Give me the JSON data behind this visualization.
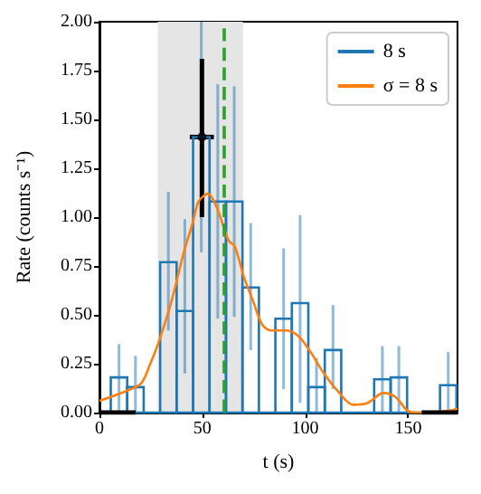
{
  "chart_data": {
    "type": "histogram",
    "xlabel": "t (s)",
    "ylabel": "Rate (counts s⁻¹)",
    "xlim": [
      0,
      174
    ],
    "xticks": [
      0,
      50,
      100,
      150
    ],
    "ylim": [
      0,
      2
    ],
    "yticks": [
      {
        "value": 0,
        "label": "0.00"
      },
      {
        "value": 0.25,
        "label": "0.25"
      },
      {
        "value": 0.5,
        "label": "0.50"
      },
      {
        "value": 0.75,
        "label": "0.75"
      },
      {
        "value": 1,
        "label": "1.00"
      },
      {
        "value": 1.25,
        "label": "1.25"
      },
      {
        "value": 1.5,
        "label": "1.50"
      },
      {
        "value": 1.75,
        "label": "1.75"
      },
      {
        "value": 2,
        "label": "2.00"
      }
    ],
    "grid": false,
    "legend": "top right",
    "bands": [
      {
        "axis": "x",
        "from": 28.3,
        "to": 69.7,
        "color": "#e5e5e5"
      }
    ],
    "ref_lines": [
      {
        "axis": "x",
        "value": 60,
        "color": "#2ca02c",
        "line_style": "dashed"
      }
    ],
    "series": [
      {
        "name": "8 s",
        "color": "#1f77b4",
        "bins": [
          5.5,
          13.5,
          21.5,
          29.5,
          37.5,
          45.5,
          53.5,
          61.5,
          69.5,
          77.5,
          85.5,
          93.5,
          101.5,
          109.5,
          117.5,
          125.5,
          133.5,
          141.5,
          149.5,
          157.5,
          165.5,
          173.5
        ],
        "values": [
          0.18,
          0.13,
          0,
          0.77,
          0.52,
          1.41,
          1.08,
          1.08,
          0.64,
          0,
          0.48,
          0.56,
          0.13,
          0.32,
          0,
          0,
          0.17,
          0.18,
          0,
          0,
          0.14
        ],
        "errors": [
          [
            0,
            0.35
          ],
          [
            0,
            0.29
          ],
          null,
          [
            0.42,
            1.13
          ],
          [
            0.2,
            0.99
          ],
          [
            0.82,
            2.0
          ],
          [
            0.48,
            1.68
          ],
          [
            0.49,
            1.67
          ],
          [
            0.32,
            0.97
          ],
          null,
          [
            0.12,
            0.84
          ],
          [
            0.05,
            1.01
          ],
          [
            0,
            0.28
          ],
          [
            0.12,
            0.55
          ],
          null,
          null,
          [
            0,
            0.34
          ],
          [
            0,
            0.34
          ],
          null,
          null,
          [
            0,
            0.31
          ]
        ]
      },
      {
        "type": "line",
        "name": "σ = 8 s",
        "color": "#ff7f0e",
        "marker": "none",
        "x": [
          0,
          13,
          20.3,
          24.7,
          29.1,
          35,
          41,
          45.3,
          48.2,
          52.7,
          57,
          62.8,
          65.8,
          70.3,
          74.7,
          79.1,
          83.5,
          90.9,
          96.8,
          102.6,
          108.5,
          115.8,
          123.2,
          130.5,
          137.9,
          143.8,
          149.7,
          154.1,
          160,
          170,
          174
        ],
        "values": [
          0.06,
          0.11,
          0.15,
          0.25,
          0.37,
          0.57,
          0.82,
          0.97,
          1.08,
          1.12,
          1.05,
          0.88,
          0.85,
          0.69,
          0.57,
          0.45,
          0.42,
          0.42,
          0.39,
          0.31,
          0.21,
          0.11,
          0.04,
          0.05,
          0.1,
          0.08,
          0.01,
          0,
          0,
          0.01,
          0.02
        ]
      },
      {
        "type": "scatter",
        "color": "#000000",
        "marker": "circle",
        "x": [
          49.8
        ],
        "values": [
          1.41
        ],
        "errors": [
          [
            1.0,
            1.81
          ]
        ],
        "xerrors": [
          [
            43.9,
            55.6
          ]
        ]
      },
      {
        "type": "line",
        "color": "#000000",
        "marker": "none",
        "x": [
          0,
          17.6,
          87,
          156.6,
          174
        ],
        "values": [
          0,
          0,
          null,
          0,
          0
        ]
      }
    ]
  }
}
